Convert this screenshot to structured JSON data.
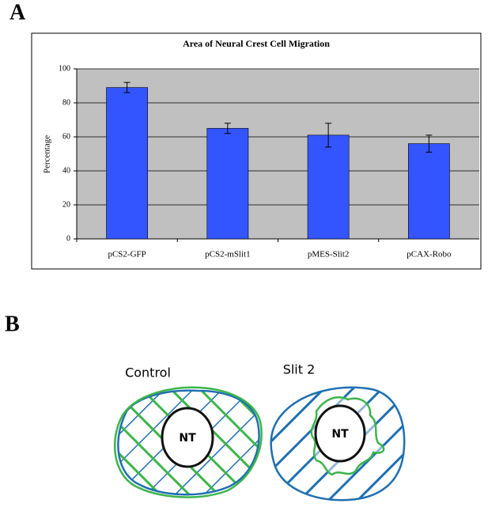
{
  "panels": [
    "A",
    "B"
  ],
  "chart_data": {
    "type": "bar",
    "title": "Area of Neural Crest Cell Migration",
    "ylabel": "Percentage",
    "categories": [
      "pCS2-GFP",
      "pCS2-mSlit1",
      "pMES-Slit2",
      "pCAX-Robo"
    ],
    "values": [
      89,
      65,
      61,
      56
    ],
    "errors": [
      3,
      3,
      7,
      5
    ],
    "color": "#3355ff",
    "ylim": [
      0,
      100
    ],
    "yticks": [
      0,
      20,
      40,
      60,
      80,
      100
    ],
    "grid": true
  },
  "diagram": {
    "left": {
      "label": "Control",
      "center": "NT"
    },
    "right": {
      "label": "Slit 2",
      "center": "NT"
    }
  }
}
